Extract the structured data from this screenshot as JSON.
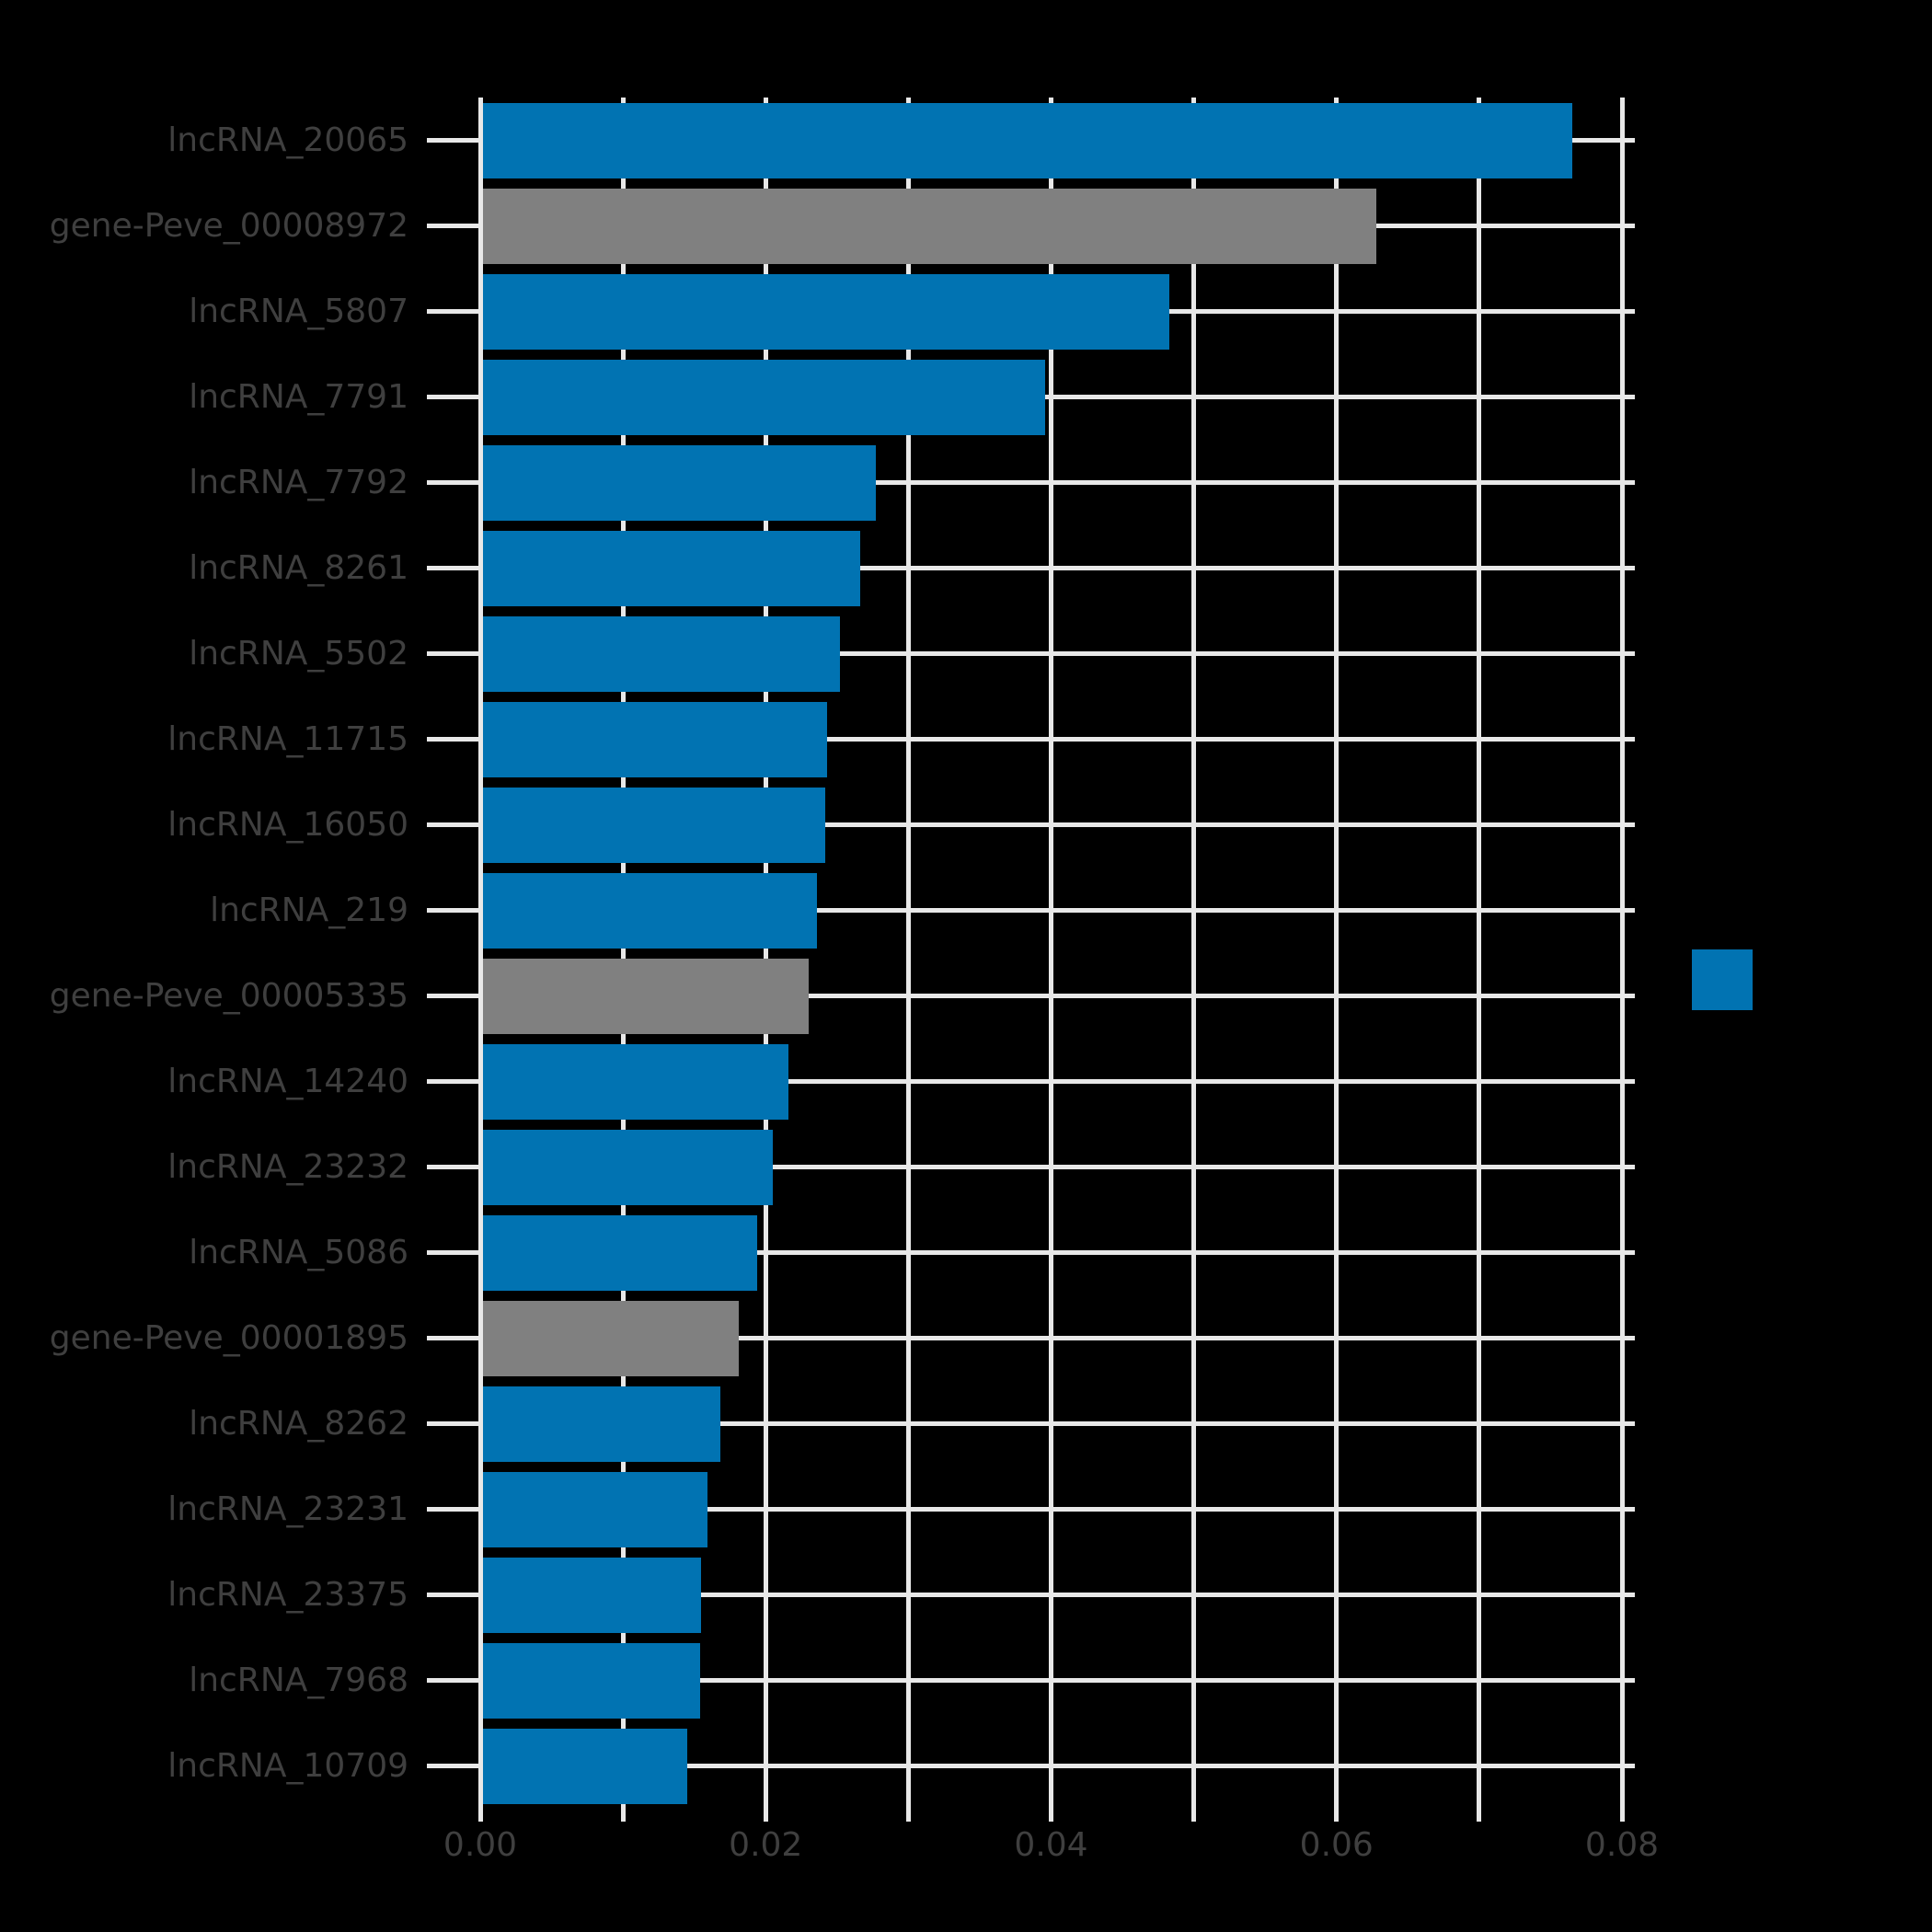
{
  "figure": {
    "background_color": "#000000",
    "title": ""
  },
  "chart_data": {
    "type": "bar",
    "orientation": "horizontal",
    "title": "",
    "xlabel": "",
    "ylabel": "",
    "xlim": [
      0,
      0.08
    ],
    "grid": true,
    "grid_color": "#e8e8e8",
    "tick_text_color": "#3f3f3f",
    "x_ticks": [
      {
        "value": 0.0,
        "label": "0.00"
      },
      {
        "value": 0.01,
        "label": ""
      },
      {
        "value": 0.02,
        "label": "0.02"
      },
      {
        "value": 0.03,
        "label": ""
      },
      {
        "value": 0.04,
        "label": "0.04"
      },
      {
        "value": 0.05,
        "label": ""
      },
      {
        "value": 0.06,
        "label": "0.06"
      },
      {
        "value": 0.07,
        "label": ""
      },
      {
        "value": 0.08,
        "label": "0.08"
      }
    ],
    "categories": [
      "lncRNA_20065",
      "gene-Peve_00008972",
      "lncRNA_5807",
      "lncRNA_7791",
      "lncRNA_7792",
      "lncRNA_8261",
      "lncRNA_5502",
      "lncRNA_11715",
      "lncRNA_16050",
      "lncRNA_219",
      "gene-Peve_00005335",
      "lncRNA_14240",
      "lncRNA_23232",
      "lncRNA_5086",
      "gene-Peve_00001895",
      "lncRNA_8262",
      "lncRNA_23231",
      "lncRNA_23375",
      "lncRNA_7968",
      "lncRNA_10709"
    ],
    "values": [
      0.0765,
      0.0628,
      0.0483,
      0.0396,
      0.0277,
      0.0266,
      0.0252,
      0.0243,
      0.0242,
      0.0236,
      0.023,
      0.0216,
      0.0205,
      0.0194,
      0.0181,
      0.0168,
      0.0159,
      0.0155,
      0.0154,
      0.0145
    ],
    "groups": [
      "lncRNA",
      "gene",
      "lncRNA",
      "lncRNA",
      "lncRNA",
      "lncRNA",
      "lncRNA",
      "lncRNA",
      "lncRNA",
      "lncRNA",
      "gene",
      "lncRNA",
      "lncRNA",
      "lncRNA",
      "gene",
      "lncRNA",
      "lncRNA",
      "lncRNA",
      "lncRNA",
      "lncRNA"
    ],
    "group_colors": {
      "lncRNA": "#0173b2",
      "gene": "#808080"
    },
    "legend": {
      "position": "center-right",
      "items": [
        {
          "label": "",
          "color": "#0173b2"
        }
      ]
    }
  }
}
